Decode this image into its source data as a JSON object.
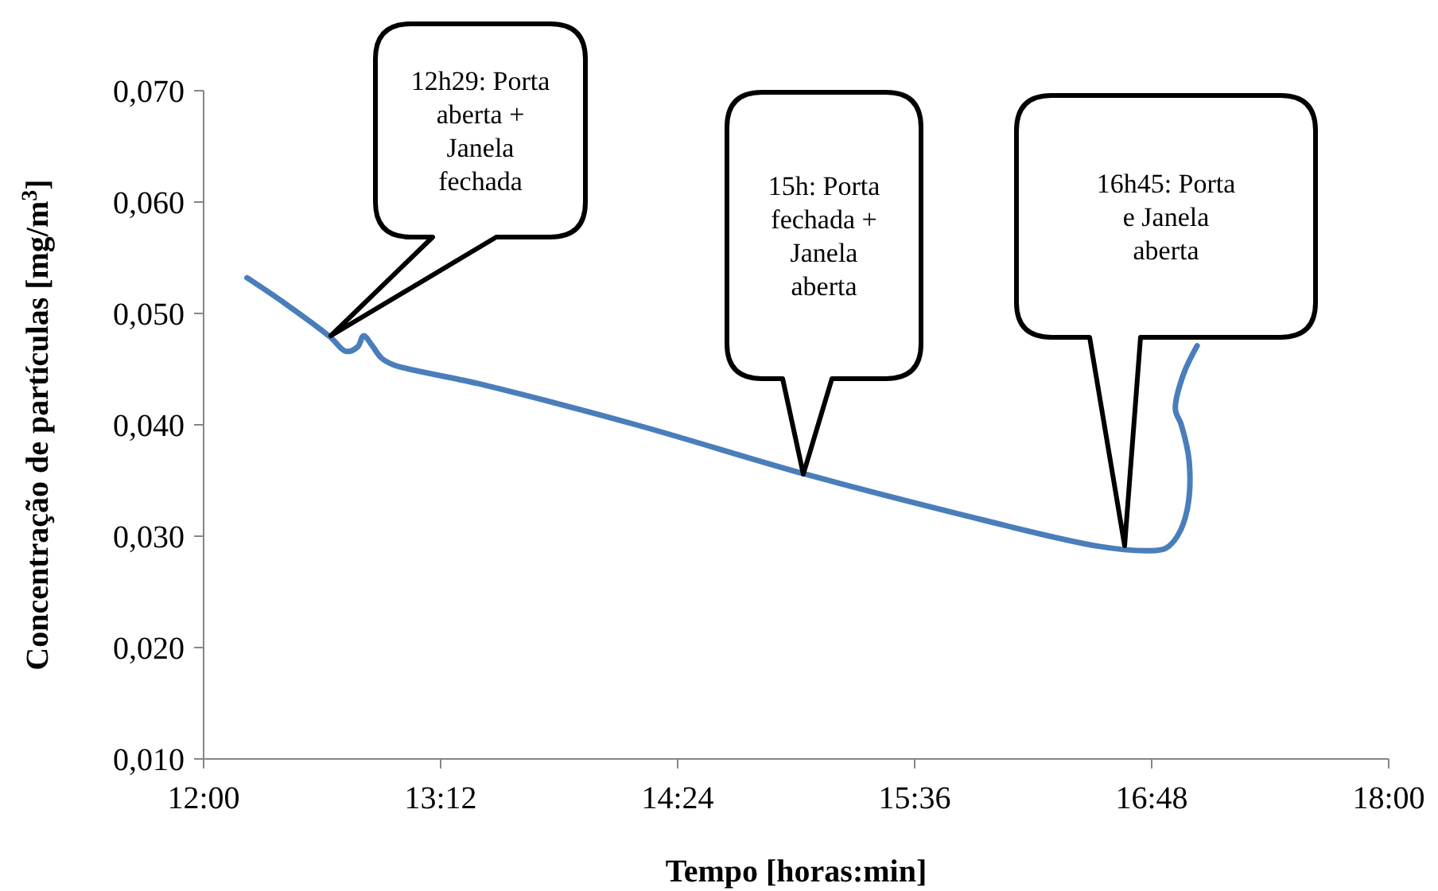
{
  "chart_data": {
    "type": "line",
    "xlabel": "Tempo [horas:min]",
    "ylabel": "Concentração de partículas [mg/m$^{3}$]",
    "xlim": [
      12,
      18
    ],
    "xticks": [
      {
        "value": 12,
        "label": "12:00"
      },
      {
        "value": 13.2,
        "label": "13:12"
      },
      {
        "value": 14.4,
        "label": "14:24"
      },
      {
        "value": 15.6,
        "label": "15:36"
      },
      {
        "value": 16.8,
        "label": "16:48"
      },
      {
        "value": 18,
        "label": "18:00"
      }
    ],
    "ylim": [
      0.01,
      0.07
    ],
    "yticks": [
      {
        "value": 0.01,
        "label": "0,010"
      },
      {
        "value": 0.02,
        "label": "0,020"
      },
      {
        "value": 0.03,
        "label": "0,030"
      },
      {
        "value": 0.04,
        "label": "0,040"
      },
      {
        "value": 0.05,
        "label": "0,050"
      },
      {
        "value": 0.06,
        "label": "0,060"
      },
      {
        "value": 0.07,
        "label": "0,070"
      }
    ],
    "grid": false,
    "marker": "none",
    "line_style": "solid",
    "series": [
      {
        "color": "#4a7ebb",
        "x": [
          12.22,
          12.42,
          12.64,
          12.72,
          12.78,
          12.81,
          12.85,
          12.9,
          12.96,
          13.39,
          14.19,
          15.04,
          15.8,
          16.53,
          16.78,
          16.87,
          16.93,
          16.98,
          16.99,
          16.95,
          16.92,
          16.96,
          17.03
        ],
        "values": [
          0.0532,
          0.0508,
          0.0479,
          0.0466,
          0.047,
          0.048,
          0.0472,
          0.046,
          0.0454,
          0.0437,
          0.04,
          0.0356,
          0.0321,
          0.0291,
          0.0287,
          0.0289,
          0.03,
          0.0324,
          0.0367,
          0.04,
          0.0414,
          0.0445,
          0.0471
        ]
      }
    ],
    "annotations": [
      "12h29: Porta aberta + Janela fechada",
      "15h: Porta fechada + Janela aberta",
      "16h45: Porta e Janela aberta"
    ]
  }
}
